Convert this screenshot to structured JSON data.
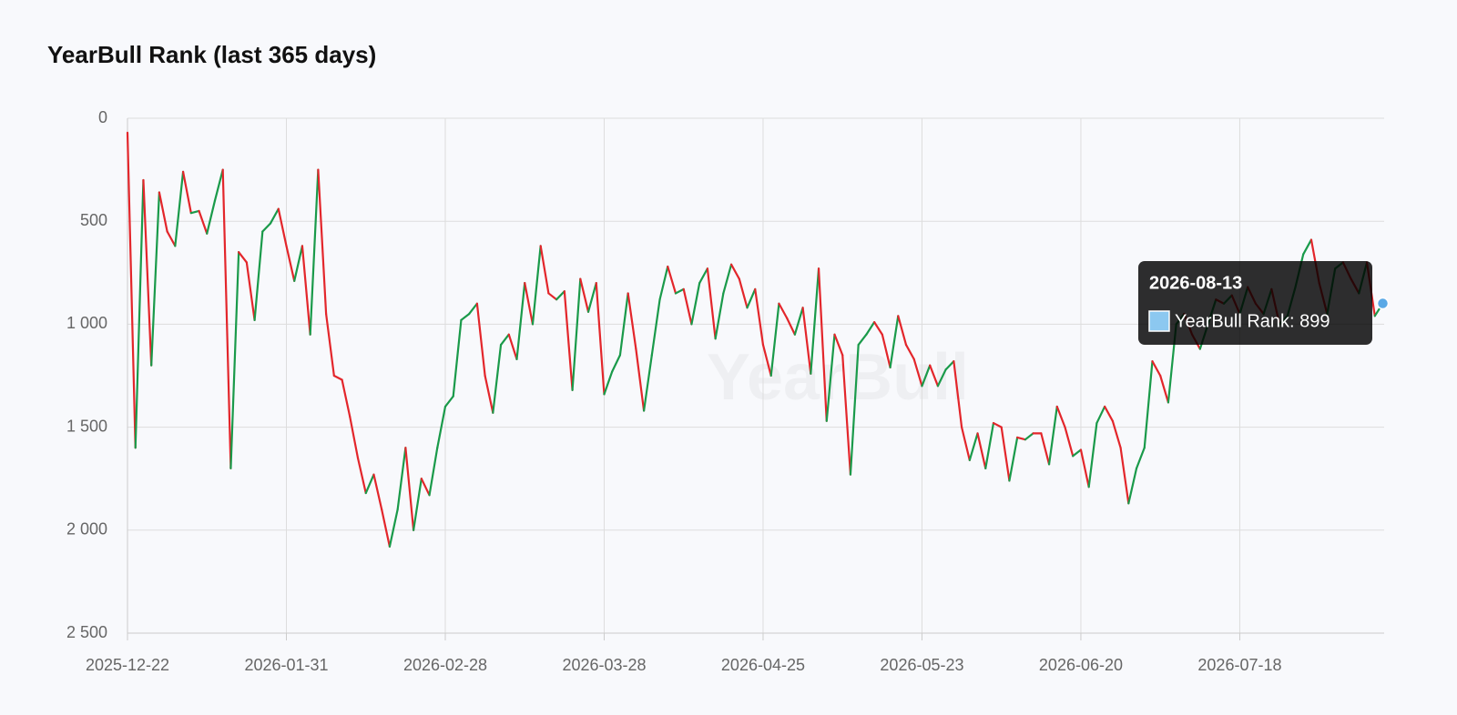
{
  "chart_data": {
    "type": "line",
    "title": "YearBull Rank (last 365 days)",
    "watermark": "YearBull",
    "categories": [
      "2025-12-22",
      null,
      null,
      null,
      null,
      null,
      null,
      null,
      null,
      null,
      null,
      null,
      null,
      null,
      null,
      null,
      null,
      null,
      null,
      null,
      "2026-01-31",
      null,
      null,
      null,
      null,
      null,
      null,
      null,
      null,
      null,
      null,
      null,
      null,
      null,
      null,
      null,
      null,
      null,
      null,
      null,
      "2026-02-28",
      null,
      null,
      null,
      null,
      null,
      null,
      null,
      null,
      null,
      null,
      null,
      null,
      null,
      null,
      null,
      null,
      null,
      null,
      null,
      "2026-03-28",
      null,
      null,
      null,
      null,
      null,
      null,
      null,
      null,
      null,
      null,
      null,
      null,
      null,
      null,
      null,
      null,
      null,
      null,
      null,
      "2026-04-25",
      null,
      null,
      null,
      null,
      null,
      null,
      null,
      null,
      null,
      null,
      null,
      null,
      null,
      null,
      null,
      null,
      null,
      null,
      null,
      "2026-05-23",
      null,
      null,
      null,
      null,
      null,
      null,
      null,
      null,
      null,
      null,
      null,
      null,
      null,
      null,
      null,
      null,
      null,
      null,
      null,
      "2026-06-20",
      null,
      null,
      null,
      null,
      null,
      null,
      null,
      null,
      null,
      null,
      null,
      null,
      null,
      null,
      null,
      null,
      null,
      null,
      null,
      "2026-07-18",
      null,
      null,
      null,
      null,
      null,
      null,
      null,
      null,
      null,
      null,
      null,
      null,
      null,
      null,
      null,
      null,
      null,
      null
    ],
    "values": [
      70,
      1600,
      300,
      1200,
      360,
      550,
      620,
      260,
      460,
      450,
      560,
      400,
      250,
      1700,
      650,
      700,
      980,
      550,
      510,
      440,
      620,
      790,
      620,
      1050,
      250,
      950,
      1250,
      1270,
      1450,
      1650,
      1820,
      1730,
      1900,
      2080,
      1900,
      1600,
      2000,
      1750,
      1830,
      1600,
      1400,
      1350,
      980,
      950,
      900,
      1250,
      1430,
      1100,
      1050,
      1170,
      800,
      1000,
      620,
      850,
      880,
      840,
      1320,
      780,
      940,
      800,
      1340,
      1230,
      1150,
      850,
      1120,
      1420,
      1150,
      880,
      720,
      850,
      830,
      1000,
      800,
      730,
      1070,
      850,
      710,
      780,
      920,
      830,
      1100,
      1250,
      900,
      970,
      1050,
      920,
      1240,
      730,
      1470,
      1050,
      1150,
      1730,
      1100,
      1050,
      990,
      1050,
      1210,
      960,
      1100,
      1170,
      1300,
      1200,
      1300,
      1220,
      1180,
      1500,
      1660,
      1530,
      1700,
      1480,
      1500,
      1760,
      1550,
      1560,
      1530,
      1530,
      1680,
      1400,
      1500,
      1640,
      1610,
      1790,
      1480,
      1400,
      1470,
      1600,
      1870,
      1700,
      1600,
      1180,
      1250,
      1380,
      1000,
      950,
      1050,
      1120,
      1000,
      880,
      900,
      860,
      950,
      820,
      900,
      950,
      830,
      1000,
      960,
      820,
      660,
      590,
      800,
      950,
      730,
      700,
      780,
      850,
      700,
      960,
      899
    ],
    "up_color": "#1a9a4a",
    "down_color": "#e3262b",
    "marker_color": "#5aa9e6",
    "ylim": [
      0,
      2500
    ],
    "y_reversed": true,
    "yticks": [
      0,
      500,
      {
        "value": 1000,
        "label": "1 000"
      },
      {
        "value": 1500,
        "label": "1 500"
      },
      {
        "value": 2000,
        "label": "2 000"
      },
      {
        "value": 2500,
        "label": "2 500"
      }
    ],
    "grid": true,
    "tooltip": {
      "title": "2026-08-13",
      "text": "YearBull Rank: 899"
    }
  }
}
